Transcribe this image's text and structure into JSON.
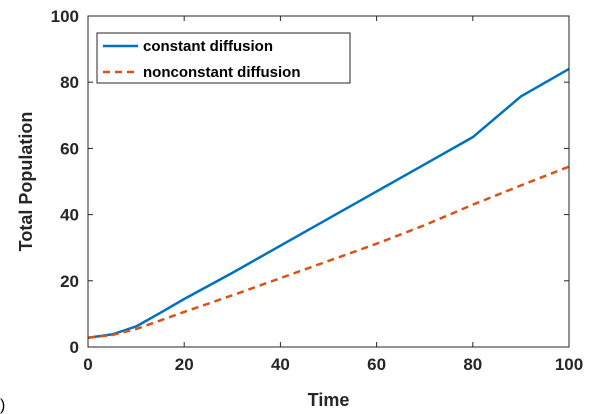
{
  "chart_data": {
    "type": "line",
    "title": "",
    "xlabel": "Time",
    "ylabel": "Total Population",
    "xlim": [
      0,
      100
    ],
    "ylim": [
      0,
      100
    ],
    "xticks": [
      0,
      20,
      40,
      60,
      80,
      100
    ],
    "yticks": [
      0,
      20,
      40,
      60,
      80,
      100
    ],
    "grid": false,
    "legend_position": "top-left",
    "corner_label": ")",
    "series": [
      {
        "name": "constant diffusion",
        "color": "#0072BD",
        "style": "solid",
        "x": [
          0,
          5,
          10,
          15,
          20,
          30,
          40,
          50,
          60,
          70,
          80,
          90,
          100
        ],
        "y": [
          2.8,
          3.8,
          6.2,
          10.3,
          14.5,
          22.4,
          30.6,
          38.8,
          47.0,
          55.2,
          63.4,
          75.7,
          84.0
        ]
      },
      {
        "name": "nonconstant diffusion",
        "color": "#D95319",
        "style": "dashed",
        "x": [
          0,
          5,
          10,
          15,
          20,
          30,
          40,
          50,
          60,
          70,
          80,
          90,
          100
        ],
        "y": [
          2.8,
          3.6,
          5.4,
          8.0,
          10.6,
          15.6,
          20.8,
          26.0,
          31.2,
          36.8,
          43.0,
          48.8,
          54.5
        ]
      }
    ]
  }
}
